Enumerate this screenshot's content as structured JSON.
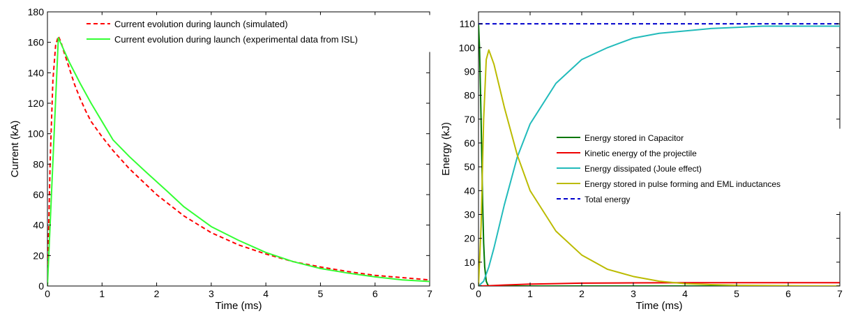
{
  "chart_data": [
    {
      "type": "line",
      "xlabel": "Time (ms)",
      "ylabel": "Current (kA)",
      "xlim": [
        0,
        7
      ],
      "ylim": [
        0,
        180
      ],
      "xticks": [
        "0",
        "1",
        "2",
        "3",
        "4",
        "5",
        "6",
        "7"
      ],
      "yticks": [
        "0",
        "20",
        "40",
        "60",
        "80",
        "100",
        "120",
        "140",
        "160",
        "180"
      ],
      "grid": false,
      "legend_position": "top",
      "series": [
        {
          "name": "Current evolution during launch (simulated)",
          "color": "#ff0000",
          "style": "dashed",
          "x": [
            0,
            0.05,
            0.1,
            0.15,
            0.2,
            0.25,
            0.3,
            0.4,
            0.5,
            0.6,
            0.7,
            0.8,
            1.0,
            1.2,
            1.5,
            2.0,
            2.5,
            3.0,
            3.5,
            4.0,
            4.5,
            5.0,
            5.5,
            6.0,
            6.5,
            7.0
          ],
          "y": [
            0,
            82,
            135,
            158,
            164,
            160,
            154,
            143,
            132,
            123,
            115,
            108,
            98,
            89,
            77,
            60,
            46,
            35,
            27,
            21,
            16,
            12.5,
            9.5,
            7,
            5.5,
            4
          ]
        },
        {
          "name": "Current evolution during launch (experimental data from ISL)",
          "color": "#33ff33",
          "style": "solid",
          "x": [
            0,
            0.2,
            0.4,
            0.6,
            0.8,
            1.0,
            1.2,
            1.5,
            1.8,
            2.2,
            2.5,
            3.0,
            3.5,
            4.0,
            4.5,
            5.0,
            5.5,
            6.0,
            6.5,
            7.0
          ],
          "y": [
            0,
            163,
            147,
            133,
            120,
            108,
            96,
            85,
            75,
            62,
            52,
            39,
            30,
            22,
            16,
            11.5,
            8.5,
            6,
            4,
            3
          ]
        }
      ]
    },
    {
      "type": "line",
      "xlabel": "Time (ms)",
      "ylabel": "Energy (kJ)",
      "xlim": [
        0,
        7
      ],
      "ylim": [
        0,
        115
      ],
      "xticks": [
        "0",
        "1",
        "2",
        "3",
        "4",
        "5",
        "6",
        "7"
      ],
      "yticks": [
        "0",
        "10",
        "20",
        "30",
        "40",
        "50",
        "60",
        "70",
        "80",
        "90",
        "100",
        "110"
      ],
      "grid": false,
      "legend_position": "center-right",
      "series": [
        {
          "name": "Energy stored in Capacitor",
          "color": "#007700",
          "style": "solid",
          "x": [
            0,
            0.02,
            0.05,
            0.08,
            0.1,
            0.12,
            0.15,
            0.18,
            0.2,
            1.0,
            2.0,
            3.0,
            4.0,
            5.0,
            6.0,
            7.0
          ],
          "y": [
            110,
            100,
            70,
            35,
            18,
            8,
            2,
            0.5,
            0,
            0,
            0,
            0,
            0,
            0,
            0,
            0
          ]
        },
        {
          "name": "Kinetic energy of the projectile",
          "color": "#ee0000",
          "style": "solid",
          "x": [
            0,
            0.2,
            0.5,
            1.0,
            1.5,
            2.0,
            3.0,
            4.0,
            5.0,
            6.0,
            7.0
          ],
          "y": [
            0,
            0.1,
            0.4,
            0.8,
            1.0,
            1.2,
            1.3,
            1.4,
            1.4,
            1.4,
            1.4
          ]
        },
        {
          "name": "Energy dissipated (Joule effect)",
          "color": "#22bbbb",
          "style": "solid",
          "x": [
            0,
            0.1,
            0.2,
            0.3,
            0.5,
            0.75,
            1.0,
            1.5,
            2.0,
            2.5,
            3.0,
            3.5,
            4.0,
            4.5,
            5.0,
            5.5,
            6.0,
            6.5,
            7.0
          ],
          "y": [
            0,
            2,
            8,
            16,
            34,
            54,
            68,
            85,
            95,
            100,
            104,
            106,
            107,
            108,
            108.5,
            109,
            109,
            109,
            109
          ]
        },
        {
          "name": "Energy stored in pulse forming and EML inductances",
          "color": "#bbbb00",
          "style": "solid",
          "x": [
            0,
            0.05,
            0.1,
            0.15,
            0.2,
            0.3,
            0.5,
            0.75,
            1.0,
            1.5,
            2.0,
            2.5,
            3.0,
            3.5,
            4.0,
            4.5,
            5.0,
            6.0,
            7.0
          ],
          "y": [
            0,
            25,
            70,
            95,
            99,
            93,
            75,
            55,
            40,
            23,
            13,
            7,
            4,
            2,
            1,
            0.6,
            0.3,
            0.1,
            0
          ]
        },
        {
          "name": "Total energy",
          "color": "#0000cc",
          "style": "dashed",
          "x": [
            0,
            7
          ],
          "y": [
            110,
            110
          ]
        }
      ]
    }
  ]
}
